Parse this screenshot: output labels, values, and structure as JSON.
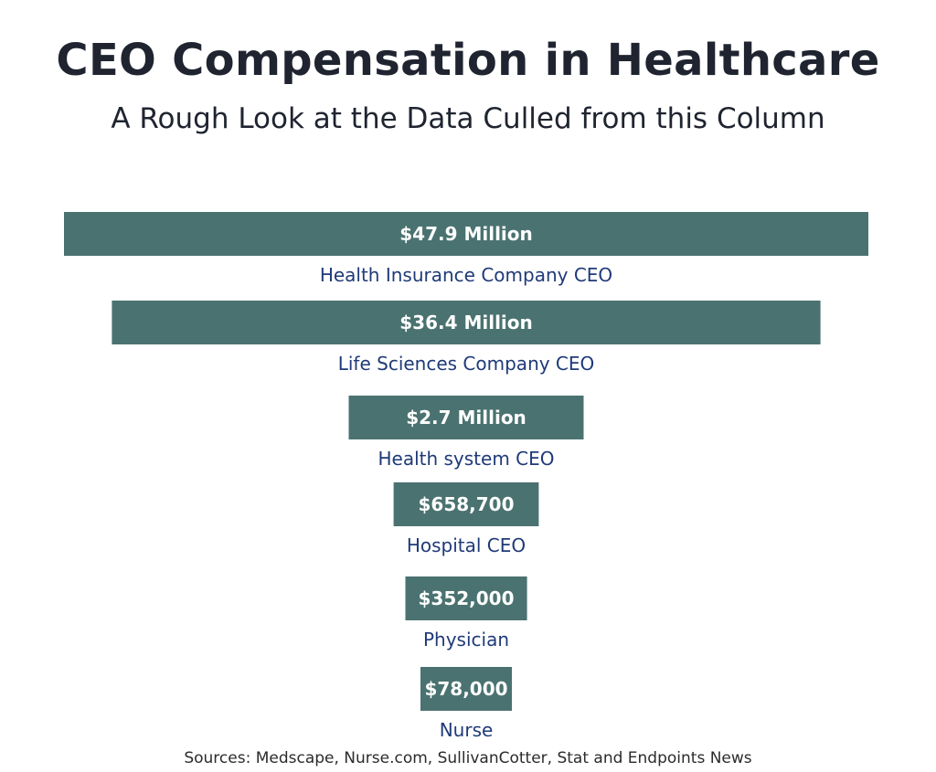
{
  "chart_data": {
    "type": "bar",
    "orientation": "horizontal-centered",
    "title": "CEO Compensation in Healthcare",
    "subtitle": "A Rough Look at the Data Culled from this Column",
    "categories": [
      "Health Insurance Company CEO",
      "Life Sciences Company CEO",
      "Health system CEO",
      "Hospital CEO",
      "Physician",
      "Nurse"
    ],
    "value_labels": [
      "$47.9 Million",
      "$36.4 Million",
      "$2.7 Million",
      "$658,700",
      "$352,000",
      "$78,000"
    ],
    "values": [
      47900000,
      36400000,
      2700000,
      658700,
      352000,
      78000
    ],
    "bar_color": "#4a7270",
    "label_color": "#1f3a78",
    "source": "Sources: Medscape, Nurse.com, SullivanCotter, Stat and Endpoints News"
  }
}
